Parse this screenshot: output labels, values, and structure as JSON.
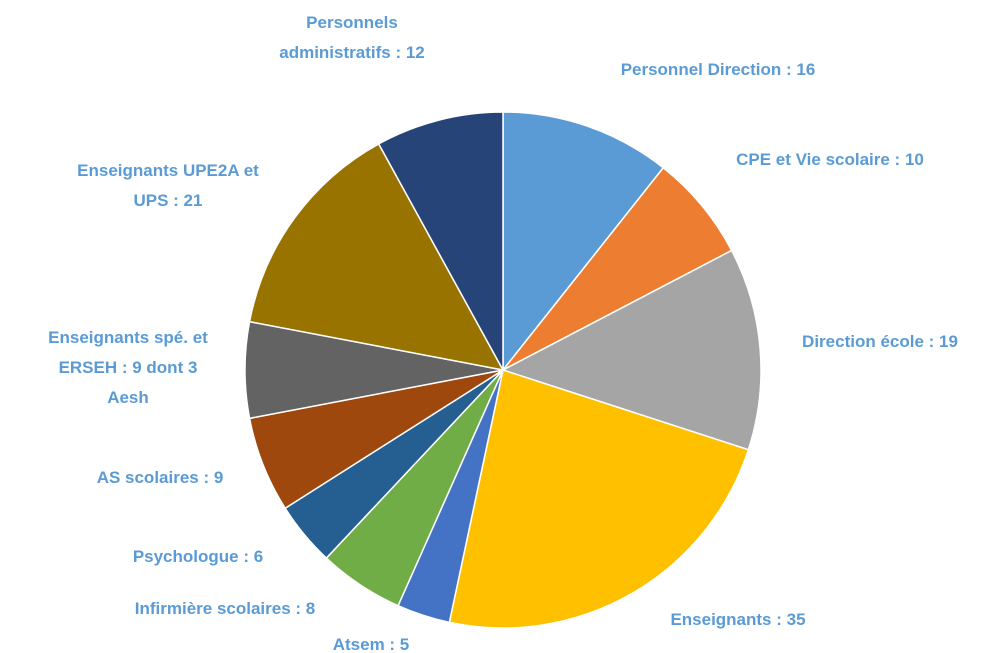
{
  "chart_data": {
    "type": "pie",
    "categories": [
      "Personnel Direction : 16",
      "CPE et Vie scolaire : 10",
      "Direction école : 19",
      "Enseignants : 35",
      "Atsem : 5",
      "Infirmière scolaires : 8",
      "Psychologue : 6",
      "AS scolaires : 9",
      "Enseignants spé. et ERSEH : 9 dont 3 Aesh",
      "Enseignants UPE2A et UPS : 21",
      "Personnels administratifs : 12"
    ],
    "values": [
      16,
      10,
      19,
      35,
      5,
      8,
      6,
      9,
      9,
      21,
      12
    ],
    "colors": [
      "#5b9bd5",
      "#ed7d31",
      "#a5a5a5",
      "#ffc000",
      "#4472c4",
      "#70ad47",
      "#255e91",
      "#9e480e",
      "#636363",
      "#997300",
      "#264478"
    ]
  }
}
